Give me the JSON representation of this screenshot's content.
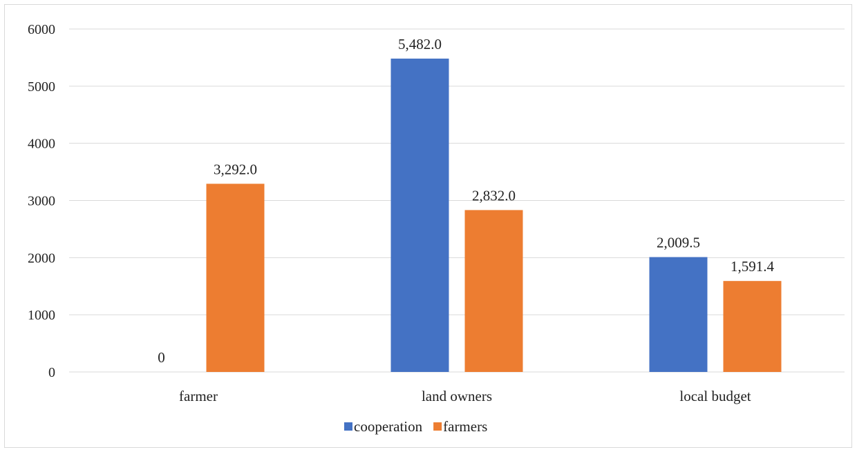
{
  "chart_data": {
    "type": "bar",
    "categories": [
      "farmer",
      "land owners",
      "local budget"
    ],
    "series": [
      {
        "name": "cooperation",
        "color": "#4472c4",
        "values": [
          0,
          5482.0,
          2009.5
        ],
        "labels": [
          "0",
          "5,482.0",
          "2,009.5"
        ]
      },
      {
        "name": "farmers",
        "color": "#ed7d31",
        "values": [
          3292.0,
          2832.0,
          1591.4
        ],
        "labels": [
          "3,292.0",
          "2,832.0",
          "1,591.4"
        ]
      }
    ],
    "y_ticks": [
      "0",
      "1000",
      "2000",
      "3000",
      "4000",
      "5000",
      "6000"
    ],
    "ylim": [
      0,
      6000
    ],
    "grid": true,
    "gridline_color": "#d9d9d9",
    "legend_position": "bottom",
    "title": "",
    "xlabel": "",
    "ylabel": ""
  }
}
